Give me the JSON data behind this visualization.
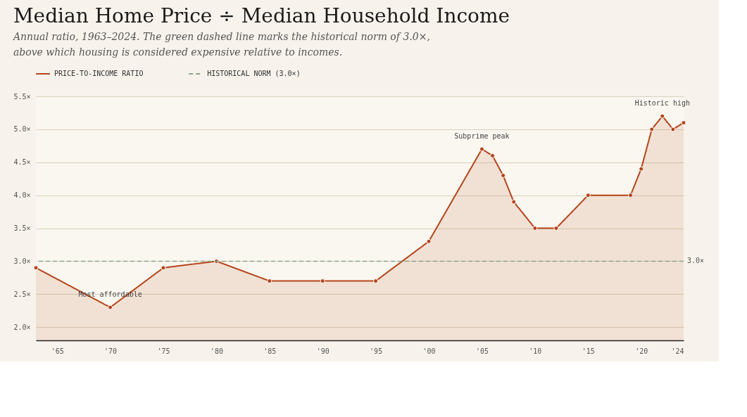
{
  "chart_data": {
    "type": "area",
    "title": "Median Home Price ÷ Median Household Income",
    "subtitle": "Annual ratio, 1963–2024. The green dashed line marks the historical norm of 3.0×, above which housing is considered expensive relative to incomes.",
    "x": [
      1963,
      1970,
      1975,
      1980,
      1985,
      1990,
      1995,
      2000,
      2005,
      2006,
      2007,
      2008,
      2010,
      2012,
      2015,
      2019,
      2020,
      2021,
      2022,
      2023,
      2024
    ],
    "series": [
      {
        "name": "PRICE-TO-INCOME RATIO",
        "color": "#b5441a",
        "values": [
          2.9,
          2.3,
          2.9,
          3.0,
          2.7,
          2.7,
          2.7,
          3.3,
          4.7,
          4.6,
          4.3,
          3.9,
          3.5,
          3.5,
          4.0,
          4.0,
          4.4,
          5.0,
          5.2,
          5.0,
          5.1
        ]
      }
    ],
    "xlim": [
      1963,
      2024
    ],
    "xticks": [
      {
        "value": 1965,
        "label": "'65"
      },
      {
        "value": 1970,
        "label": "'70"
      },
      {
        "value": 1975,
        "label": "'75"
      },
      {
        "value": 1980,
        "label": "'80"
      },
      {
        "value": 1985,
        "label": "'85"
      },
      {
        "value": 1990,
        "label": "'90"
      },
      {
        "value": 1995,
        "label": "'95"
      },
      {
        "value": 2000,
        "label": "'00"
      },
      {
        "value": 2005,
        "label": "'05"
      },
      {
        "value": 2010,
        "label": "'10"
      },
      {
        "value": 2015,
        "label": "'15"
      },
      {
        "value": 2020,
        "label": "'20"
      },
      {
        "value": 2024,
        "label": "'24"
      }
    ],
    "ylim": [
      1.8,
      5.5
    ],
    "yticks": [
      {
        "value": 2.0,
        "label": "2.0×"
      },
      {
        "value": 2.5,
        "label": "2.5×"
      },
      {
        "value": 3.0,
        "label": "3.0×"
      },
      {
        "value": 3.5,
        "label": "3.5×"
      },
      {
        "value": 4.0,
        "label": "4.0×"
      },
      {
        "value": 4.5,
        "label": "4.5×"
      },
      {
        "value": 5.0,
        "label": "5.0×"
      },
      {
        "value": 5.5,
        "label": "5.5×"
      }
    ],
    "ref_lines": [
      {
        "axis": "y",
        "value": 3.0,
        "label": "3.0×",
        "color": "#8aa58c",
        "line_style": "dashed"
      }
    ],
    "annotations": [
      {
        "text": "Most affordable",
        "x": 1970,
        "y": 2.3
      },
      {
        "text": "Subprime peak",
        "x": 2005,
        "y": 4.7
      },
      {
        "text": "Historic high",
        "x": 2022,
        "y": 5.2
      },
      "HISTORICAL NORM (3.0×)"
    ],
    "grid": "y",
    "legend": "top left",
    "marker": "circle",
    "line_style": "solid"
  }
}
